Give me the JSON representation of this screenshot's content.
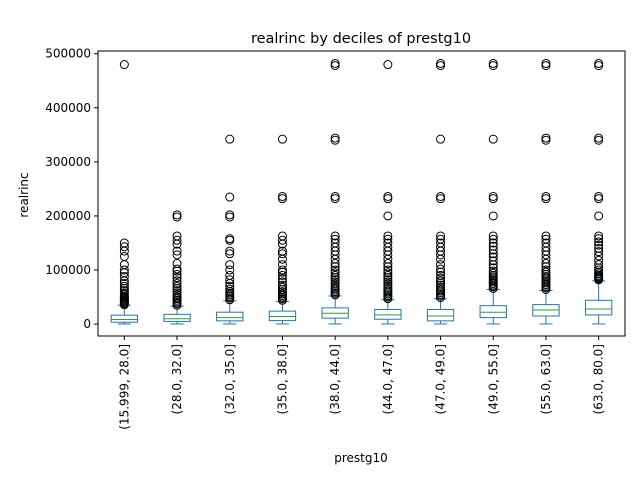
{
  "chart_data": {
    "type": "boxplot",
    "title": "realrinc by deciles of prestg10",
    "xlabel": "prestg10",
    "ylabel": "realrinc",
    "ylim": [
      -22000,
      505000
    ],
    "yticks": [
      0,
      100000,
      200000,
      300000,
      400000,
      500000
    ],
    "ytick_labels": [
      "0",
      "100000",
      "200000",
      "300000",
      "400000",
      "500000"
    ],
    "grid": false,
    "legend": "none",
    "colors": {
      "box": "#1f77b4",
      "median": "#2ca02c",
      "flier": "#000000"
    },
    "categories": [
      "(15.999, 28.0]",
      "(28.0, 32.0]",
      "(32.0, 35.0]",
      "(35.0, 38.0]",
      "(38.0, 44.0]",
      "(44.0, 47.0]",
      "(47.0, 49.0]",
      "(49.0, 55.0]",
      "(55.0, 63.0]",
      "(63.0, 80.0]"
    ],
    "boxes": [
      {
        "min": 300,
        "q1": 3500,
        "median": 8500,
        "q3": 16500,
        "max": 35000,
        "fliers": [
          36000,
          38000,
          40000,
          42000,
          44000,
          46000,
          48000,
          50000,
          52000,
          55000,
          58000,
          62000,
          66000,
          70000,
          75000,
          80000,
          88000,
          95000,
          100000,
          110000,
          125000,
          135000,
          143000,
          150000,
          480000
        ]
      },
      {
        "min": 300,
        "q1": 5000,
        "median": 10000,
        "q3": 18000,
        "max": 33000,
        "fliers": [
          35000,
          38000,
          41000,
          44000,
          47000,
          50000,
          54000,
          58000,
          62000,
          66000,
          70000,
          75000,
          80000,
          86000,
          92000,
          98000,
          102000,
          112000,
          128000,
          135000,
          148000,
          155000,
          163000,
          198000,
          202000
        ]
      },
      {
        "min": 300,
        "q1": 6000,
        "median": 12000,
        "q3": 22000,
        "max": 43000,
        "fliers": [
          45000,
          48000,
          51000,
          54000,
          57000,
          60000,
          65000,
          70000,
          75000,
          82000,
          90000,
          100000,
          110000,
          130000,
          135000,
          155000,
          158000,
          198000,
          202000,
          235000,
          342000
        ]
      },
      {
        "min": 300,
        "q1": 6500,
        "median": 14000,
        "q3": 24000,
        "max": 42000,
        "fliers": [
          44000,
          47000,
          50000,
          53000,
          56000,
          60000,
          64000,
          68000,
          72000,
          78000,
          84000,
          90000,
          96000,
          100000,
          110000,
          120000,
          130000,
          135000,
          148000,
          155000,
          163000,
          232000,
          236000,
          342000
        ]
      },
      {
        "min": 300,
        "q1": 11000,
        "median": 20000,
        "q3": 30000,
        "max": 52000,
        "fliers": [
          54000,
          57000,
          60000,
          63000,
          66000,
          70000,
          74000,
          78000,
          82000,
          86000,
          90000,
          95000,
          100000,
          106000,
          112000,
          120000,
          128000,
          135000,
          142000,
          150000,
          157000,
          163000,
          232000,
          236000,
          340000,
          344000,
          478000,
          482000
        ]
      },
      {
        "min": 300,
        "q1": 9000,
        "median": 17000,
        "q3": 27000,
        "max": 45000,
        "fliers": [
          47000,
          50000,
          53000,
          56000,
          59000,
          62000,
          66000,
          70000,
          74000,
          78000,
          82000,
          86000,
          90000,
          95000,
          100000,
          106000,
          112000,
          120000,
          128000,
          135000,
          142000,
          150000,
          157000,
          163000,
          200000,
          232000,
          236000,
          480000
        ]
      },
      {
        "min": 300,
        "q1": 6000,
        "median": 15000,
        "q3": 27000,
        "max": 47000,
        "fliers": [
          49000,
          52000,
          55000,
          58000,
          61000,
          64000,
          68000,
          72000,
          76000,
          80000,
          85000,
          90000,
          96000,
          102000,
          110000,
          120000,
          128000,
          135000,
          142000,
          150000,
          157000,
          163000,
          232000,
          236000,
          342000,
          478000,
          482000
        ]
      },
      {
        "min": 300,
        "q1": 12000,
        "median": 22000,
        "q3": 34000,
        "max": 64000,
        "fliers": [
          66000,
          69000,
          72000,
          75000,
          78000,
          81000,
          84000,
          87000,
          90000,
          94000,
          98000,
          104000,
          110000,
          117000,
          124000,
          130000,
          137000,
          144000,
          150000,
          157000,
          163000,
          200000,
          232000,
          236000,
          342000,
          478000,
          482000
        ]
      },
      {
        "min": 300,
        "q1": 15000,
        "median": 26000,
        "q3": 36000,
        "max": 62000,
        "fliers": [
          64000,
          67000,
          70000,
          73000,
          76000,
          79000,
          82000,
          85000,
          88000,
          92000,
          96000,
          100000,
          106000,
          112000,
          120000,
          128000,
          135000,
          142000,
          150000,
          157000,
          163000,
          232000,
          236000,
          340000,
          344000,
          478000,
          482000
        ]
      },
      {
        "min": 300,
        "q1": 17000,
        "median": 28000,
        "q3": 44000,
        "max": 80000,
        "fliers": [
          82000,
          84000,
          86000,
          88000,
          90000,
          93000,
          96000,
          100000,
          104000,
          110000,
          118000,
          126000,
          134000,
          140000,
          146000,
          152000,
          158000,
          163000,
          200000,
          232000,
          236000,
          340000,
          344000,
          478000,
          482000
        ]
      }
    ]
  }
}
